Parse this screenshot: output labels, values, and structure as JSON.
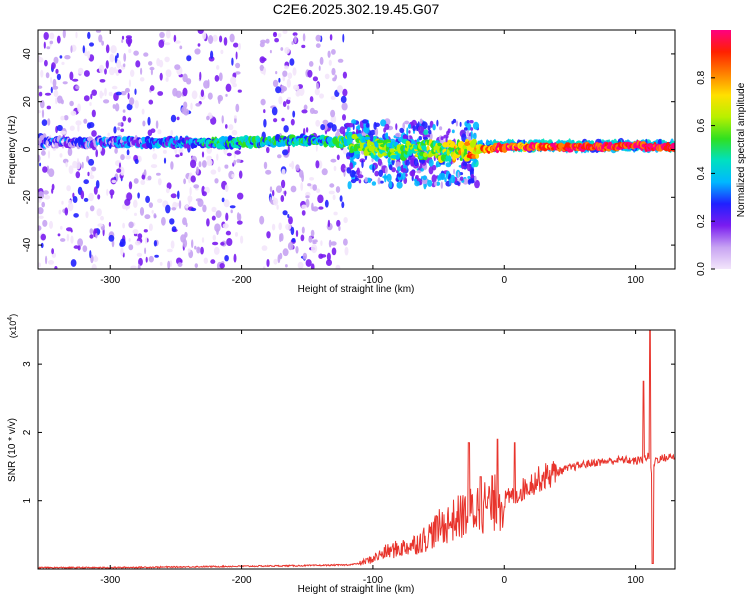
{
  "title": "C2E6.2025.302.19.45.G07",
  "chart_data": [
    {
      "type": "heatmap",
      "xlabel": "Height of straight line (km)",
      "ylabel": "Frequency (Hz)",
      "xlim": [
        -355,
        130
      ],
      "ylim": [
        -50,
        50
      ],
      "x_ticks": [
        -300,
        -200,
        -100,
        0,
        100
      ],
      "y_ticks": [
        -40,
        -20,
        0,
        20,
        40
      ],
      "colorbar": {
        "label": "Normalized spectral amplitude",
        "range": [
          0,
          1
        ],
        "ticks": [
          "0.0",
          "0.2",
          "0.4",
          "0.6",
          "0.8"
        ],
        "colors": [
          "#f3e6fb",
          "#c7a3f2",
          "#7a1cf0",
          "#2020ff",
          "#00b8ff",
          "#00e0c0",
          "#30e020",
          "#b8f000",
          "#ffe000",
          "#ff8000",
          "#ff2000",
          "#ff0080"
        ]
      },
      "description_regions": [
        {
          "x_range": [
            -355,
            -120
          ],
          "freq_range": [
            -50,
            50
          ],
          "amplitude": "low, scattered"
        },
        {
          "x_range": [
            -120,
            -20
          ],
          "freq_range": [
            -15,
            12
          ],
          "amplitude": "medium"
        },
        {
          "x_range": [
            -20,
            130
          ],
          "freq_range": [
            0,
            3
          ],
          "amplitude": "high"
        }
      ],
      "ridge": {
        "x": [
          -355,
          -300,
          -250,
          -200,
          -150,
          -120,
          -100,
          -80,
          -60,
          -40,
          -20,
          0,
          20,
          50,
          80,
          100,
          110,
          115,
          130
        ],
        "freq": [
          3,
          3,
          3,
          3,
          4,
          3,
          1,
          0,
          0,
          -1,
          0,
          1,
          1,
          1,
          1,
          2,
          1,
          1,
          1
        ],
        "amplitude": [
          0.2,
          0.25,
          0.3,
          0.45,
          0.4,
          0.5,
          0.55,
          0.5,
          0.55,
          0.6,
          0.75,
          0.85,
          0.88,
          0.9,
          0.92,
          0.9,
          0.95,
          0.9,
          0.92
        ]
      }
    },
    {
      "type": "line",
      "xlabel": "Height of straight line (km)",
      "ylabel": "SNR (10 * v/v)",
      "y_multiplier": "(x10^4)",
      "xlim": [
        -355,
        130
      ],
      "ylim": [
        0,
        3.5
      ],
      "x_ticks": [
        -300,
        -200,
        -100,
        0,
        100
      ],
      "y_ticks": [
        1,
        2,
        3
      ],
      "series": [
        {
          "color": "#e8342c",
          "x": [
            -355,
            -300,
            -250,
            -200,
            -150,
            -120,
            -110,
            -100,
            -90,
            -80,
            -70,
            -60,
            -50,
            -40,
            -30,
            -20,
            -10,
            0,
            10,
            20,
            30,
            40,
            50,
            60,
            70,
            80,
            90,
            100,
            105,
            110,
            112,
            115,
            120,
            130
          ],
          "y": [
            0.02,
            0.02,
            0.03,
            0.04,
            0.05,
            0.06,
            0.08,
            0.15,
            0.25,
            0.3,
            0.35,
            0.45,
            0.6,
            0.7,
            0.8,
            0.9,
            0.95,
            1.0,
            1.1,
            1.25,
            1.35,
            1.42,
            1.48,
            1.53,
            1.56,
            1.58,
            1.6,
            1.58,
            1.6,
            1.65,
            1.4,
            1.6,
            1.62,
            1.65
          ]
        }
      ],
      "spikes": [
        {
          "x": -27,
          "y": 1.85
        },
        {
          "x": -18,
          "y": 1.35
        },
        {
          "x": -5,
          "y": 1.9
        },
        {
          "x": 8,
          "y": 1.85
        },
        {
          "x": 106,
          "y": 2.75
        },
        {
          "x": 111,
          "y": 3.5
        },
        {
          "x": 113,
          "y": 0.08
        }
      ]
    }
  ]
}
